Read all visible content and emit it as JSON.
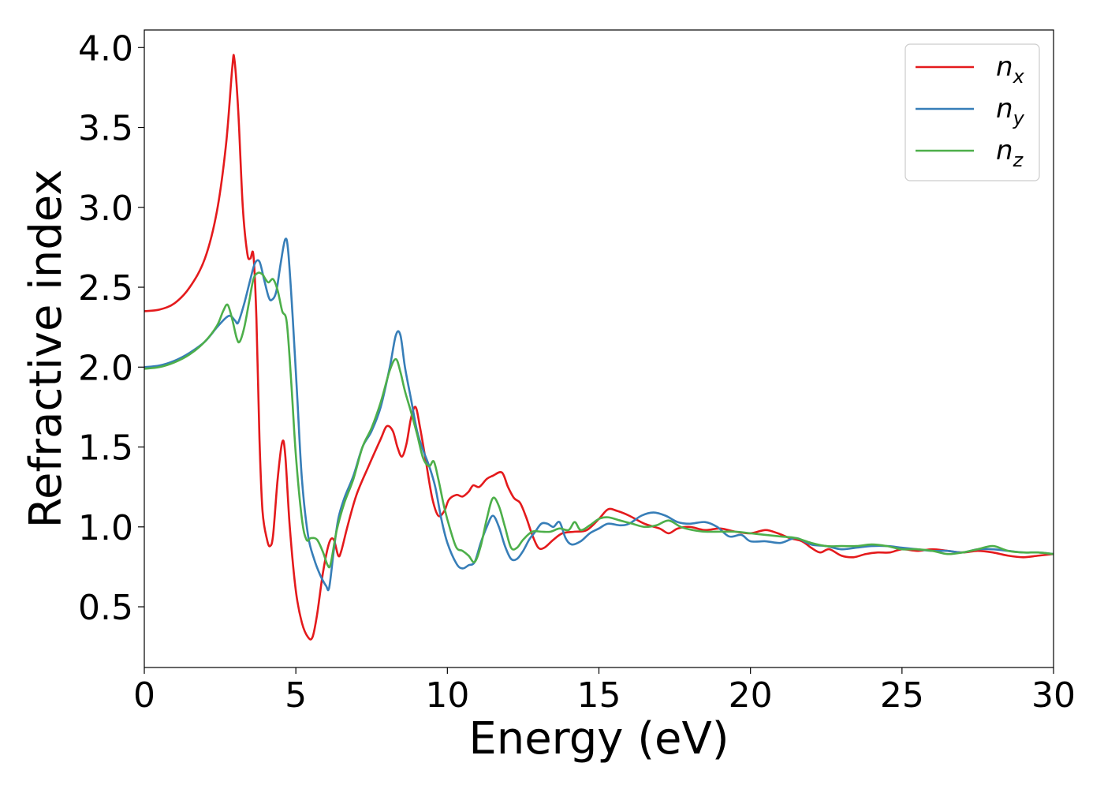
{
  "chart_data": {
    "type": "line",
    "xlabel": "Energy (eV)",
    "ylabel": "Refractive index",
    "xlim": [
      0,
      30
    ],
    "ylim": [
      0.12,
      4.11
    ],
    "xticks": [
      0,
      5,
      10,
      15,
      20,
      25,
      30
    ],
    "yticks": [
      0.5,
      1.0,
      1.5,
      2.0,
      2.5,
      3.0,
      3.5,
      4.0
    ],
    "xtick_labels": [
      "0",
      "5",
      "10",
      "15",
      "20",
      "25",
      "30"
    ],
    "ytick_labels": [
      "0.5",
      "1.0",
      "1.5",
      "2.0",
      "2.5",
      "3.0",
      "3.5",
      "4.0"
    ],
    "grid": false,
    "legend_position": "top-right",
    "series": [
      {
        "name": "n",
        "subscript": "x",
        "color": "#e41a1c",
        "points": [
          [
            0,
            2.35
          ],
          [
            0.5,
            2.36
          ],
          [
            1.0,
            2.4
          ],
          [
            1.5,
            2.5
          ],
          [
            2.0,
            2.68
          ],
          [
            2.4,
            2.98
          ],
          [
            2.7,
            3.4
          ],
          [
            2.9,
            3.87
          ],
          [
            2.97,
            3.93
          ],
          [
            3.1,
            3.6
          ],
          [
            3.25,
            3.0
          ],
          [
            3.4,
            2.71
          ],
          [
            3.5,
            2.68
          ],
          [
            3.6,
            2.7
          ],
          [
            3.7,
            2.3
          ],
          [
            3.8,
            1.55
          ],
          [
            3.9,
            1.1
          ],
          [
            4.05,
            0.92
          ],
          [
            4.15,
            0.88
          ],
          [
            4.25,
            0.95
          ],
          [
            4.4,
            1.3
          ],
          [
            4.55,
            1.53
          ],
          [
            4.65,
            1.45
          ],
          [
            4.8,
            1.0
          ],
          [
            5.0,
            0.6
          ],
          [
            5.2,
            0.4
          ],
          [
            5.4,
            0.31
          ],
          [
            5.55,
            0.31
          ],
          [
            5.7,
            0.45
          ],
          [
            5.9,
            0.72
          ],
          [
            6.1,
            0.9
          ],
          [
            6.25,
            0.92
          ],
          [
            6.4,
            0.82
          ],
          [
            6.5,
            0.85
          ],
          [
            6.7,
            1.0
          ],
          [
            7.0,
            1.2
          ],
          [
            7.4,
            1.38
          ],
          [
            7.8,
            1.55
          ],
          [
            8.0,
            1.63
          ],
          [
            8.2,
            1.6
          ],
          [
            8.35,
            1.5
          ],
          [
            8.5,
            1.44
          ],
          [
            8.65,
            1.52
          ],
          [
            8.8,
            1.68
          ],
          [
            8.95,
            1.75
          ],
          [
            9.1,
            1.62
          ],
          [
            9.3,
            1.4
          ],
          [
            9.5,
            1.18
          ],
          [
            9.7,
            1.07
          ],
          [
            9.9,
            1.1
          ],
          [
            10.05,
            1.17
          ],
          [
            10.3,
            1.2
          ],
          [
            10.5,
            1.19
          ],
          [
            10.7,
            1.22
          ],
          [
            10.85,
            1.26
          ],
          [
            11.05,
            1.25
          ],
          [
            11.3,
            1.3
          ],
          [
            11.5,
            1.32
          ],
          [
            11.8,
            1.34
          ],
          [
            12.0,
            1.25
          ],
          [
            12.2,
            1.18
          ],
          [
            12.4,
            1.15
          ],
          [
            12.6,
            1.06
          ],
          [
            12.8,
            0.95
          ],
          [
            13.0,
            0.87
          ],
          [
            13.2,
            0.87
          ],
          [
            13.5,
            0.92
          ],
          [
            13.8,
            0.96
          ],
          [
            14.2,
            0.97
          ],
          [
            14.6,
            0.98
          ],
          [
            15.0,
            1.05
          ],
          [
            15.3,
            1.11
          ],
          [
            15.6,
            1.1
          ],
          [
            16.0,
            1.07
          ],
          [
            16.5,
            1.02
          ],
          [
            17.0,
            0.99
          ],
          [
            17.3,
            0.96
          ],
          [
            17.6,
            0.99
          ],
          [
            18.0,
            1.0
          ],
          [
            18.5,
            0.98
          ],
          [
            19.0,
            0.99
          ],
          [
            19.5,
            0.97
          ],
          [
            20.0,
            0.96
          ],
          [
            20.5,
            0.98
          ],
          [
            20.9,
            0.96
          ],
          [
            21.3,
            0.93
          ],
          [
            21.7,
            0.91
          ],
          [
            22.0,
            0.87
          ],
          [
            22.3,
            0.84
          ],
          [
            22.6,
            0.86
          ],
          [
            23.0,
            0.82
          ],
          [
            23.4,
            0.81
          ],
          [
            23.8,
            0.83
          ],
          [
            24.2,
            0.84
          ],
          [
            24.6,
            0.84
          ],
          [
            25.0,
            0.86
          ],
          [
            25.5,
            0.85
          ],
          [
            26.0,
            0.86
          ],
          [
            26.5,
            0.85
          ],
          [
            27.0,
            0.84
          ],
          [
            27.5,
            0.85
          ],
          [
            28.0,
            0.84
          ],
          [
            28.5,
            0.82
          ],
          [
            29.0,
            0.81
          ],
          [
            29.5,
            0.82
          ],
          [
            30.0,
            0.83
          ]
        ]
      },
      {
        "name": "n",
        "subscript": "y",
        "color": "#377eb8",
        "points": [
          [
            0,
            2.0
          ],
          [
            0.5,
            2.01
          ],
          [
            1.0,
            2.04
          ],
          [
            1.5,
            2.09
          ],
          [
            2.0,
            2.16
          ],
          [
            2.4,
            2.25
          ],
          [
            2.7,
            2.31
          ],
          [
            2.85,
            2.32
          ],
          [
            3.0,
            2.29
          ],
          [
            3.1,
            2.28
          ],
          [
            3.3,
            2.4
          ],
          [
            3.5,
            2.55
          ],
          [
            3.65,
            2.65
          ],
          [
            3.8,
            2.66
          ],
          [
            3.95,
            2.55
          ],
          [
            4.1,
            2.44
          ],
          [
            4.2,
            2.42
          ],
          [
            4.35,
            2.47
          ],
          [
            4.5,
            2.65
          ],
          [
            4.65,
            2.8
          ],
          [
            4.75,
            2.72
          ],
          [
            4.9,
            2.3
          ],
          [
            5.05,
            1.8
          ],
          [
            5.2,
            1.3
          ],
          [
            5.4,
            0.95
          ],
          [
            5.6,
            0.8
          ],
          [
            5.8,
            0.7
          ],
          [
            6.0,
            0.63
          ],
          [
            6.1,
            0.62
          ],
          [
            6.25,
            0.85
          ],
          [
            6.4,
            1.05
          ],
          [
            6.6,
            1.18
          ],
          [
            6.9,
            1.32
          ],
          [
            7.2,
            1.5
          ],
          [
            7.5,
            1.6
          ],
          [
            7.8,
            1.75
          ],
          [
            8.1,
            2.0
          ],
          [
            8.3,
            2.2
          ],
          [
            8.45,
            2.2
          ],
          [
            8.6,
            2.0
          ],
          [
            8.8,
            1.8
          ],
          [
            9.0,
            1.6
          ],
          [
            9.2,
            1.48
          ],
          [
            9.4,
            1.38
          ],
          [
            9.6,
            1.25
          ],
          [
            9.8,
            1.05
          ],
          [
            10.0,
            0.9
          ],
          [
            10.3,
            0.77
          ],
          [
            10.5,
            0.74
          ],
          [
            10.7,
            0.76
          ],
          [
            10.9,
            0.78
          ],
          [
            11.1,
            0.9
          ],
          [
            11.3,
            1.0
          ],
          [
            11.5,
            1.07
          ],
          [
            11.7,
            1.0
          ],
          [
            11.9,
            0.88
          ],
          [
            12.1,
            0.8
          ],
          [
            12.3,
            0.8
          ],
          [
            12.5,
            0.85
          ],
          [
            12.7,
            0.92
          ],
          [
            12.9,
            0.97
          ],
          [
            13.1,
            1.02
          ],
          [
            13.3,
            1.02
          ],
          [
            13.5,
            1.0
          ],
          [
            13.7,
            1.03
          ],
          [
            13.9,
            0.93
          ],
          [
            14.1,
            0.89
          ],
          [
            14.4,
            0.91
          ],
          [
            14.7,
            0.96
          ],
          [
            15.0,
            0.99
          ],
          [
            15.3,
            1.02
          ],
          [
            15.7,
            1.01
          ],
          [
            16.0,
            1.02
          ],
          [
            16.4,
            1.07
          ],
          [
            16.8,
            1.09
          ],
          [
            17.2,
            1.07
          ],
          [
            17.6,
            1.03
          ],
          [
            18.0,
            1.02
          ],
          [
            18.5,
            1.03
          ],
          [
            18.9,
            1.0
          ],
          [
            19.3,
            0.94
          ],
          [
            19.7,
            0.95
          ],
          [
            20.0,
            0.91
          ],
          [
            20.5,
            0.91
          ],
          [
            21.0,
            0.9
          ],
          [
            21.5,
            0.93
          ],
          [
            22.0,
            0.89
          ],
          [
            22.5,
            0.88
          ],
          [
            23.0,
            0.86
          ],
          [
            23.5,
            0.87
          ],
          [
            24.0,
            0.88
          ],
          [
            24.5,
            0.88
          ],
          [
            25.0,
            0.87
          ],
          [
            25.5,
            0.86
          ],
          [
            26.0,
            0.85
          ],
          [
            26.5,
            0.85
          ],
          [
            27.0,
            0.84
          ],
          [
            27.5,
            0.86
          ],
          [
            28.0,
            0.86
          ],
          [
            28.5,
            0.85
          ],
          [
            29.0,
            0.84
          ],
          [
            29.5,
            0.84
          ],
          [
            30.0,
            0.83
          ]
        ]
      },
      {
        "name": "n",
        "subscript": "z",
        "color": "#4daf4a",
        "points": [
          [
            0,
            1.99
          ],
          [
            0.5,
            2.0
          ],
          [
            1.0,
            2.03
          ],
          [
            1.5,
            2.08
          ],
          [
            2.0,
            2.16
          ],
          [
            2.4,
            2.26
          ],
          [
            2.6,
            2.35
          ],
          [
            2.75,
            2.39
          ],
          [
            2.9,
            2.3
          ],
          [
            3.05,
            2.18
          ],
          [
            3.15,
            2.16
          ],
          [
            3.3,
            2.25
          ],
          [
            3.45,
            2.4
          ],
          [
            3.6,
            2.55
          ],
          [
            3.75,
            2.59
          ],
          [
            3.9,
            2.58
          ],
          [
            4.0,
            2.55
          ],
          [
            4.1,
            2.53
          ],
          [
            4.25,
            2.55
          ],
          [
            4.4,
            2.48
          ],
          [
            4.55,
            2.35
          ],
          [
            4.7,
            2.28
          ],
          [
            4.85,
            1.9
          ],
          [
            5.0,
            1.45
          ],
          [
            5.2,
            1.05
          ],
          [
            5.35,
            0.92
          ],
          [
            5.5,
            0.93
          ],
          [
            5.7,
            0.92
          ],
          [
            5.9,
            0.84
          ],
          [
            6.05,
            0.76
          ],
          [
            6.15,
            0.77
          ],
          [
            6.35,
            0.98
          ],
          [
            6.6,
            1.15
          ],
          [
            6.9,
            1.3
          ],
          [
            7.2,
            1.5
          ],
          [
            7.5,
            1.62
          ],
          [
            7.8,
            1.78
          ],
          [
            8.1,
            1.98
          ],
          [
            8.3,
            2.05
          ],
          [
            8.45,
            1.97
          ],
          [
            8.6,
            1.85
          ],
          [
            8.8,
            1.72
          ],
          [
            9.0,
            1.58
          ],
          [
            9.2,
            1.43
          ],
          [
            9.4,
            1.38
          ],
          [
            9.55,
            1.41
          ],
          [
            9.7,
            1.3
          ],
          [
            9.9,
            1.12
          ],
          [
            10.1,
            0.98
          ],
          [
            10.3,
            0.87
          ],
          [
            10.5,
            0.85
          ],
          [
            10.7,
            0.82
          ],
          [
            10.9,
            0.78
          ],
          [
            11.1,
            0.88
          ],
          [
            11.3,
            1.05
          ],
          [
            11.5,
            1.18
          ],
          [
            11.7,
            1.13
          ],
          [
            11.9,
            1.0
          ],
          [
            12.1,
            0.87
          ],
          [
            12.3,
            0.87
          ],
          [
            12.5,
            0.92
          ],
          [
            12.8,
            0.97
          ],
          [
            13.1,
            0.97
          ],
          [
            13.4,
            0.97
          ],
          [
            13.7,
            0.99
          ],
          [
            14.0,
            0.98
          ],
          [
            14.2,
            1.03
          ],
          [
            14.4,
            0.98
          ],
          [
            14.7,
            1.01
          ],
          [
            15.0,
            1.05
          ],
          [
            15.3,
            1.06
          ],
          [
            15.7,
            1.04
          ],
          [
            16.1,
            1.02
          ],
          [
            16.5,
            1.0
          ],
          [
            16.9,
            1.01
          ],
          [
            17.3,
            1.04
          ],
          [
            17.7,
            1.0
          ],
          [
            18.1,
            0.98
          ],
          [
            18.5,
            0.97
          ],
          [
            19.0,
            0.97
          ],
          [
            19.5,
            0.97
          ],
          [
            20.0,
            0.96
          ],
          [
            20.5,
            0.95
          ],
          [
            21.0,
            0.94
          ],
          [
            21.5,
            0.93
          ],
          [
            22.0,
            0.9
          ],
          [
            22.5,
            0.88
          ],
          [
            23.0,
            0.88
          ],
          [
            23.5,
            0.88
          ],
          [
            24.0,
            0.89
          ],
          [
            24.5,
            0.88
          ],
          [
            25.0,
            0.86
          ],
          [
            25.5,
            0.86
          ],
          [
            26.0,
            0.85
          ],
          [
            26.5,
            0.83
          ],
          [
            27.0,
            0.84
          ],
          [
            27.5,
            0.86
          ],
          [
            28.0,
            0.88
          ],
          [
            28.5,
            0.85
          ],
          [
            29.0,
            0.84
          ],
          [
            29.5,
            0.84
          ],
          [
            30.0,
            0.83
          ]
        ]
      }
    ]
  }
}
